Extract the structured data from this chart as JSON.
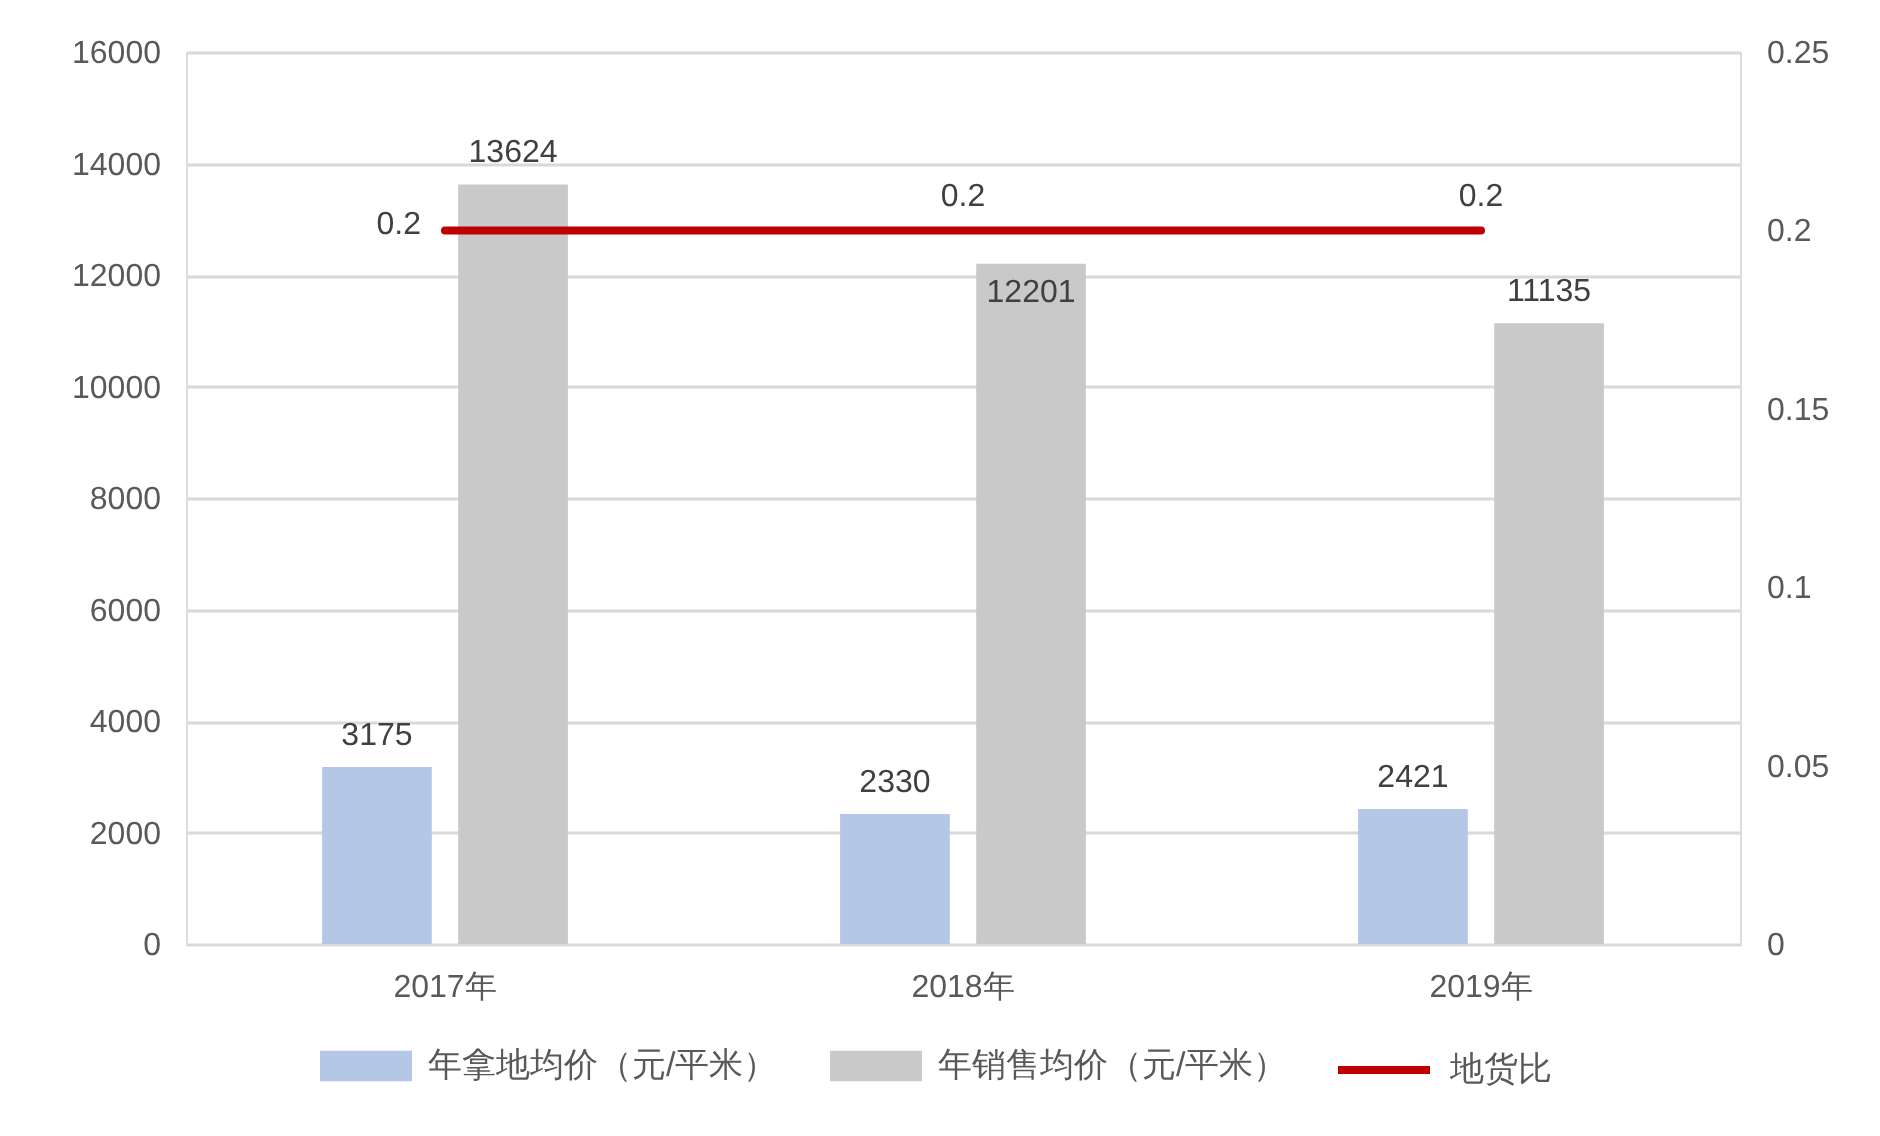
{
  "chart_data": {
    "type": "bar",
    "categories": [
      "2017年",
      "2018年",
      "2019年"
    ],
    "series": [
      {
        "name": "年拿地均价（元/平米）",
        "color": "#b4c7e7",
        "values": [
          3175,
          2330,
          2421
        ]
      },
      {
        "name": "年销售均价（元/平米）",
        "color": "#c9c9c9",
        "values": [
          13624,
          12201,
          11135
        ]
      },
      {
        "name": "地货比",
        "type": "line",
        "axis": "y2",
        "color": "#c00000",
        "values": [
          0.2,
          0.2,
          0.2
        ]
      }
    ],
    "ylim": [
      0,
      16000
    ],
    "yticks": [
      0,
      2000,
      4000,
      6000,
      8000,
      10000,
      12000,
      14000,
      16000
    ],
    "y2lim": [
      0,
      0.25
    ],
    "y2ticks": [
      0,
      0.05,
      0.1,
      0.15,
      0.2,
      0.25
    ],
    "grid": "y",
    "legend": "bottom",
    "data_labels": true
  }
}
